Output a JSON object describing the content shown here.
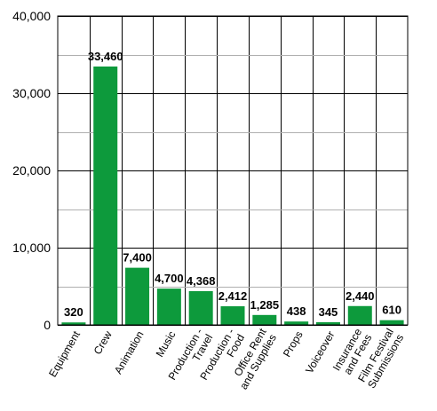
{
  "chart_data": {
    "type": "bar",
    "categories": [
      [
        "Equipment"
      ],
      [
        "Crew"
      ],
      [
        "Animation"
      ],
      [
        "Music"
      ],
      [
        "Production -",
        "Travel"
      ],
      [
        "Production -",
        "Food"
      ],
      [
        "Office Rent",
        "and Supplies"
      ],
      [
        "Props"
      ],
      [
        "Voiceover"
      ],
      [
        "Insurance",
        "and Fees"
      ],
      [
        "Film Festival",
        "Submissions"
      ]
    ],
    "values": [
      320,
      33460,
      7400,
      4700,
      4368,
      2412,
      1285,
      438,
      345,
      2440,
      610
    ],
    "data_labels": [
      "320",
      "33,460",
      "7,400",
      "4,700",
      "4,368",
      "2,412",
      "1,285",
      "438",
      "345",
      "2,440",
      "610"
    ],
    "ylim": [
      0,
      40000
    ],
    "y_ticks": [
      0,
      10000,
      20000,
      30000,
      40000
    ],
    "y_tick_labels": [
      "0",
      "10,000",
      "20,000",
      "30,000",
      "40,000"
    ],
    "minor_gridlines": [
      5000,
      15000,
      25000,
      35000
    ],
    "bar_color": "#0d9a3c",
    "grid": true,
    "legend": "none"
  }
}
